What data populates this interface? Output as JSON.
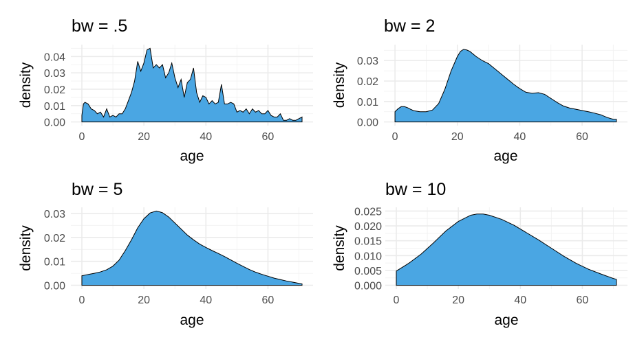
{
  "chart_data": [
    {
      "type": "area",
      "title": "bw = .5",
      "xlabel": "age",
      "ylabel": "density",
      "xlim": [
        0,
        71
      ],
      "ylim": [
        0,
        0.045
      ],
      "x_ticks": [
        0,
        20,
        40,
        60
      ],
      "x_tick_labels": [
        "0",
        "20",
        "40",
        "60"
      ],
      "y_ticks": [
        0,
        0.01,
        0.02,
        0.03,
        0.04
      ],
      "y_tick_labels": [
        "0.00",
        "0.01",
        "0.02",
        "0.03",
        "0.04"
      ],
      "grid": true,
      "fill_color": "#4aa6e3",
      "series": [
        {
          "x": [
            0,
            0.5,
            1,
            2,
            3,
            4,
            5,
            6,
            7,
            8,
            9,
            10,
            11,
            12,
            13,
            14,
            15,
            16,
            17,
            18,
            19,
            20,
            21,
            22,
            23,
            24,
            25,
            26,
            27,
            28,
            29,
            30,
            31,
            32,
            33,
            34,
            35,
            36,
            37,
            38,
            39,
            40,
            41,
            42,
            43,
            44,
            45,
            46,
            47,
            48,
            49,
            50,
            51,
            52,
            53,
            54,
            55,
            56,
            57,
            58,
            59,
            60,
            61,
            62,
            63,
            64,
            65,
            66,
            67,
            68,
            69,
            70,
            71
          ],
          "y": [
            0.004,
            0.011,
            0.012,
            0.011,
            0.008,
            0.007,
            0.005,
            0.006,
            0.003,
            0.008,
            0.003,
            0.004,
            0.003,
            0.005,
            0.005,
            0.008,
            0.013,
            0.018,
            0.025,
            0.037,
            0.031,
            0.036,
            0.044,
            0.045,
            0.033,
            0.035,
            0.033,
            0.035,
            0.027,
            0.03,
            0.036,
            0.027,
            0.021,
            0.026,
            0.015,
            0.024,
            0.026,
            0.033,
            0.018,
            0.012,
            0.016,
            0.015,
            0.011,
            0.013,
            0.011,
            0.012,
            0.023,
            0.011,
            0.011,
            0.012,
            0.011,
            0.006,
            0.007,
            0.006,
            0.008,
            0.005,
            0.008,
            0.006,
            0.007,
            0.005,
            0.005,
            0.007,
            0.004,
            0.003,
            0.003,
            0.005,
            0.001,
            0.001,
            0.002,
            0.001,
            0.001,
            0.002,
            0.003
          ]
        }
      ]
    },
    {
      "type": "area",
      "title": "bw = 2",
      "xlabel": "age",
      "ylabel": "density",
      "xlim": [
        0,
        71
      ],
      "ylim": [
        0,
        0.036
      ],
      "x_ticks": [
        0,
        20,
        40,
        60
      ],
      "x_tick_labels": [
        "0",
        "20",
        "40",
        "60"
      ],
      "y_ticks": [
        0,
        0.01,
        0.02,
        0.03
      ],
      "y_tick_labels": [
        "0.00",
        "0.01",
        "0.02",
        "0.03"
      ],
      "grid": true,
      "fill_color": "#4aa6e3",
      "series": [
        {
          "x": [
            0,
            1,
            2,
            3,
            4,
            5,
            6,
            8,
            10,
            12,
            14,
            16,
            18,
            20,
            21,
            22,
            23,
            24,
            26,
            28,
            30,
            32,
            34,
            36,
            38,
            40,
            42,
            44,
            46,
            48,
            50,
            52,
            54,
            56,
            58,
            60,
            62,
            64,
            66,
            68,
            70,
            71
          ],
          "y": [
            0.005,
            0.0065,
            0.0075,
            0.0075,
            0.007,
            0.0062,
            0.0055,
            0.005,
            0.005,
            0.0058,
            0.009,
            0.016,
            0.025,
            0.032,
            0.0345,
            0.0355,
            0.0352,
            0.0345,
            0.032,
            0.03,
            0.0285,
            0.026,
            0.0235,
            0.021,
            0.0185,
            0.0163,
            0.0145,
            0.014,
            0.0143,
            0.0135,
            0.0115,
            0.0095,
            0.0078,
            0.0068,
            0.0062,
            0.0056,
            0.005,
            0.0043,
            0.0035,
            0.0022,
            0.0013,
            0.0013
          ]
        }
      ]
    },
    {
      "type": "area",
      "title": "bw = 5",
      "xlabel": "age",
      "ylabel": "density",
      "xlim": [
        0,
        71
      ],
      "ylim": [
        0,
        0.031
      ],
      "x_ticks": [
        0,
        20,
        40,
        60
      ],
      "x_tick_labels": [
        "0",
        "20",
        "40",
        "60"
      ],
      "y_ticks": [
        0,
        0.01,
        0.02,
        0.03
      ],
      "y_tick_labels": [
        "0.00",
        "0.01",
        "0.02",
        "0.03"
      ],
      "grid": true,
      "fill_color": "#4aa6e3",
      "series": [
        {
          "x": [
            0,
            2,
            4,
            6,
            8,
            10,
            12,
            14,
            16,
            18,
            20,
            22,
            24,
            25,
            26,
            28,
            30,
            32,
            34,
            36,
            38,
            40,
            42,
            44,
            46,
            48,
            50,
            52,
            54,
            56,
            58,
            60,
            62,
            64,
            66,
            68,
            70,
            71
          ],
          "y": [
            0.004,
            0.0045,
            0.005,
            0.0056,
            0.0065,
            0.008,
            0.0105,
            0.0145,
            0.019,
            0.024,
            0.0278,
            0.0302,
            0.031,
            0.0307,
            0.0303,
            0.0285,
            0.026,
            0.0235,
            0.021,
            0.019,
            0.0172,
            0.0158,
            0.0145,
            0.0133,
            0.012,
            0.0106,
            0.0092,
            0.0079,
            0.0066,
            0.0055,
            0.0046,
            0.0038,
            0.003,
            0.0024,
            0.0018,
            0.0013,
            0.0008,
            0.0006
          ]
        }
      ]
    },
    {
      "type": "area",
      "title": "bw = 10",
      "xlabel": "age",
      "ylabel": "density",
      "xlim": [
        0,
        71
      ],
      "ylim": [
        0,
        0.025
      ],
      "x_ticks": [
        0,
        20,
        40,
        60
      ],
      "x_tick_labels": [
        "0",
        "20",
        "40",
        "60"
      ],
      "y_ticks": [
        0,
        0.005,
        0.01,
        0.015,
        0.02,
        0.025
      ],
      "y_tick_labels": [
        "0.000",
        "0.005",
        "0.010",
        "0.015",
        "0.020",
        "0.025"
      ],
      "grid": true,
      "fill_color": "#4aa6e3",
      "series": [
        {
          "x": [
            0,
            4,
            8,
            12,
            16,
            20,
            24,
            26,
            28,
            30,
            34,
            38,
            42,
            46,
            50,
            54,
            58,
            62,
            66,
            70,
            71
          ],
          "y": [
            0.0048,
            0.0074,
            0.0105,
            0.0143,
            0.0183,
            0.0215,
            0.0236,
            0.024,
            0.024,
            0.0236,
            0.0222,
            0.0202,
            0.0177,
            0.0152,
            0.0125,
            0.0098,
            0.0074,
            0.0054,
            0.0038,
            0.0023,
            0.002
          ]
        }
      ]
    }
  ]
}
